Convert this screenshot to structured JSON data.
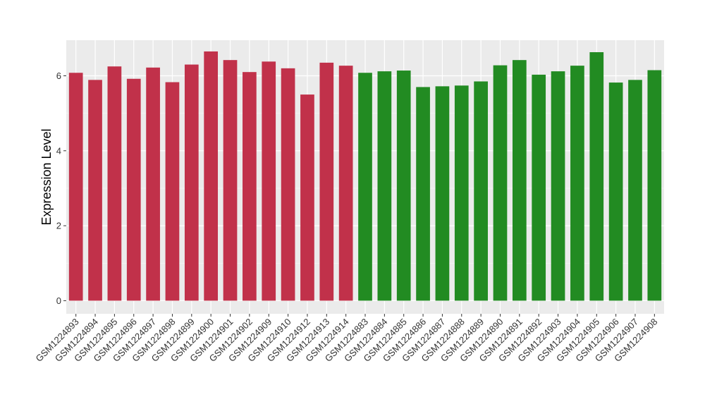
{
  "chart_data": {
    "type": "bar",
    "ylabel": "Expression Level",
    "xlabel": "",
    "ylim": [
      -0.35,
      6.95
    ],
    "yticks": [
      0,
      2,
      4,
      6
    ],
    "grid": true,
    "background": "#EBEBEB",
    "colors": {
      "group1": "#C1314A",
      "group2": "#228B22"
    },
    "categories": [
      "GSM1224893",
      "GSM1224894",
      "GSM1224895",
      "GSM1224896",
      "GSM1224897",
      "GSM1224898",
      "GSM1224899",
      "GSM1224900",
      "GSM1224901",
      "GSM1224902",
      "GSM1224909",
      "GSM1224910",
      "GSM1224912",
      "GSM1224913",
      "GSM1224914",
      "GSM1224883",
      "GSM1224884",
      "GSM1224885",
      "GSM1224886",
      "GSM1224887",
      "GSM1224888",
      "GSM1224889",
      "GSM1224890",
      "GSM1224891",
      "GSM1224892",
      "GSM1224903",
      "GSM1224904",
      "GSM1224905",
      "GSM1224906",
      "GSM1224907",
      "GSM1224908"
    ],
    "values": [
      6.08,
      5.89,
      6.25,
      5.92,
      6.22,
      5.83,
      6.3,
      6.65,
      6.42,
      6.1,
      6.38,
      6.2,
      5.5,
      6.35,
      6.27,
      6.08,
      6.12,
      6.14,
      5.7,
      5.72,
      5.74,
      5.85,
      6.28,
      6.42,
      6.03,
      6.12,
      6.27,
      6.63,
      5.82,
      5.89,
      6.15
    ],
    "groups": [
      "group1",
      "group1",
      "group1",
      "group1",
      "group1",
      "group1",
      "group1",
      "group1",
      "group1",
      "group1",
      "group1",
      "group1",
      "group1",
      "group1",
      "group1",
      "group2",
      "group2",
      "group2",
      "group2",
      "group2",
      "group2",
      "group2",
      "group2",
      "group2",
      "group2",
      "group2",
      "group2",
      "group2",
      "group2",
      "group2",
      "group2"
    ]
  }
}
